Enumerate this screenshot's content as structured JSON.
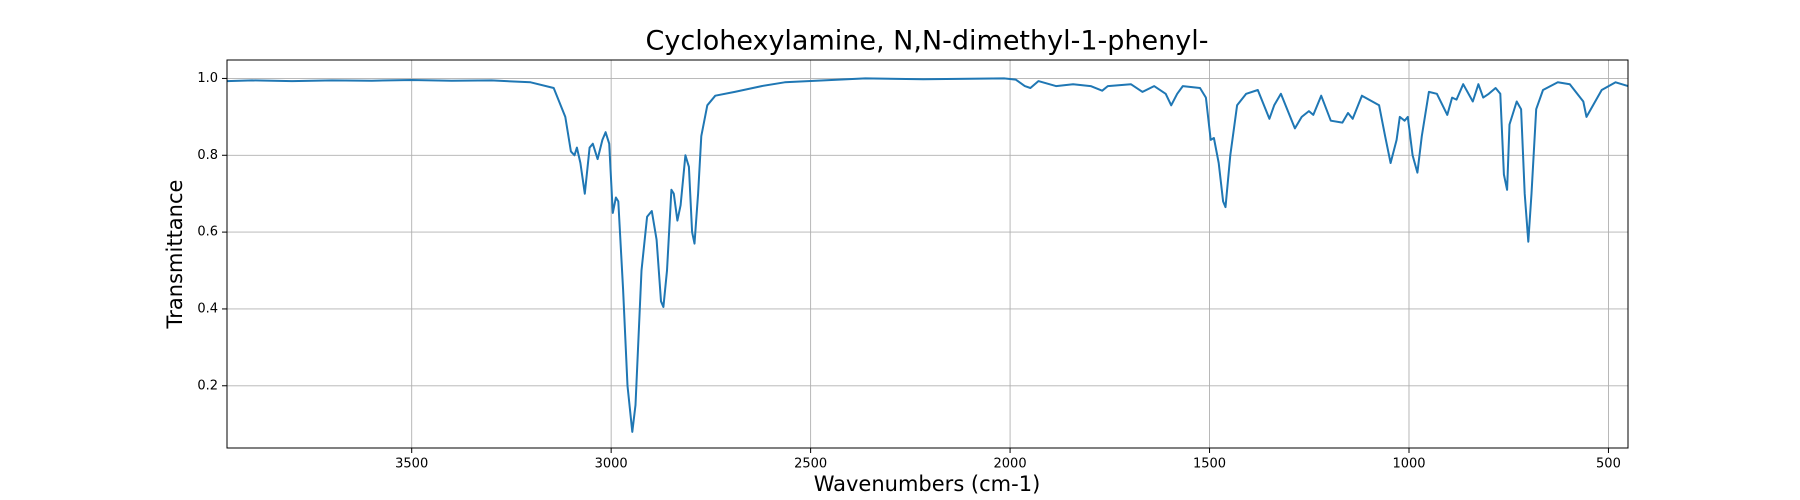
{
  "chart_data": {
    "type": "line",
    "title": "Cyclohexylamine, N,N-dimethyl-1-phenyl-",
    "x_label": "Wavenumbers (cm-1)",
    "y_label": "Transmittance",
    "xlim": [
      3963,
      451
    ],
    "ylim": [
      0.038,
      1.048
    ],
    "xticks": [
      3500,
      3000,
      2500,
      2000,
      1500,
      1000,
      500
    ],
    "yticks": [
      0.2,
      0.4,
      0.6,
      0.8,
      1.0
    ],
    "grid": true,
    "series": [
      {
        "color": "#1f77b4",
        "x": [
          3963,
          3900,
          3800,
          3700,
          3600,
          3500,
          3400,
          3300,
          3202,
          3144,
          3115,
          3101,
          3092,
          3086,
          3077,
          3066,
          3054,
          3046,
          3034,
          3022,
          3014,
          3005,
          2996,
          2988,
          2982,
          2970,
          2959,
          2947,
          2939,
          2924,
          2910,
          2898,
          2886,
          2875,
          2869,
          2860,
          2849,
          2843,
          2834,
          2826,
          2814,
          2805,
          2797,
          2791,
          2782,
          2774,
          2759,
          2739,
          2690,
          2623,
          2565,
          2363,
          2218,
          2015,
          1986,
          1963,
          1949,
          1929,
          1885,
          1842,
          1798,
          1769,
          1755,
          1697,
          1668,
          1639,
          1610,
          1596,
          1581,
          1567,
          1524,
          1509,
          1497,
          1489,
          1477,
          1466,
          1460,
          1448,
          1431,
          1408,
          1379,
          1350,
          1338,
          1321,
          1286,
          1269,
          1251,
          1240,
          1220,
          1196,
          1167,
          1153,
          1141,
          1118,
          1075,
          1060,
          1046,
          1031,
          1023,
          1011,
          1003,
          991,
          979,
          968,
          950,
          930,
          904,
          892,
          881,
          864,
          840,
          826,
          814,
          800,
          783,
          771,
          762,
          754,
          748,
          730,
          719,
          710,
          701,
          693,
          681,
          664,
          627,
          597,
          563,
          555,
          517,
          482,
          451
        ],
        "values": [
          0.993,
          0.995,
          0.993,
          0.995,
          0.994,
          0.996,
          0.994,
          0.995,
          0.99,
          0.975,
          0.9,
          0.81,
          0.8,
          0.82,
          0.78,
          0.7,
          0.82,
          0.83,
          0.79,
          0.84,
          0.86,
          0.83,
          0.65,
          0.69,
          0.68,
          0.45,
          0.2,
          0.08,
          0.15,
          0.5,
          0.64,
          0.655,
          0.58,
          0.42,
          0.405,
          0.5,
          0.71,
          0.7,
          0.63,
          0.67,
          0.8,
          0.77,
          0.6,
          0.57,
          0.7,
          0.85,
          0.93,
          0.955,
          0.965,
          0.98,
          0.99,
          1.0,
          0.998,
          1.0,
          0.997,
          0.98,
          0.975,
          0.993,
          0.98,
          0.985,
          0.98,
          0.968,
          0.98,
          0.985,
          0.965,
          0.98,
          0.96,
          0.93,
          0.96,
          0.98,
          0.975,
          0.95,
          0.84,
          0.845,
          0.78,
          0.68,
          0.665,
          0.8,
          0.93,
          0.96,
          0.97,
          0.895,
          0.93,
          0.96,
          0.87,
          0.9,
          0.915,
          0.905,
          0.955,
          0.89,
          0.885,
          0.91,
          0.895,
          0.955,
          0.93,
          0.85,
          0.78,
          0.84,
          0.9,
          0.89,
          0.9,
          0.8,
          0.755,
          0.85,
          0.965,
          0.96,
          0.905,
          0.95,
          0.945,
          0.985,
          0.94,
          0.985,
          0.95,
          0.96,
          0.975,
          0.96,
          0.75,
          0.71,
          0.88,
          0.94,
          0.92,
          0.7,
          0.575,
          0.7,
          0.92,
          0.97,
          0.99,
          0.985,
          0.94,
          0.9,
          0.97,
          0.99,
          0.98
        ]
      }
    ]
  }
}
